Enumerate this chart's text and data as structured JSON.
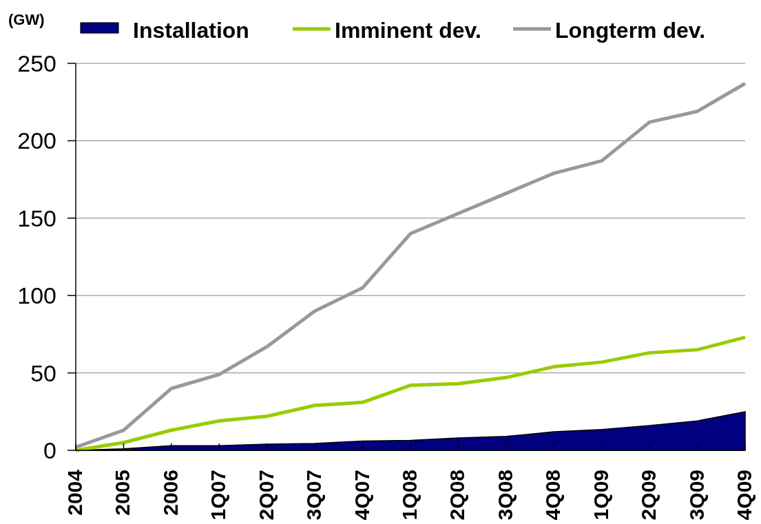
{
  "chart_data": {
    "type": "line",
    "ylabel": "(GW)",
    "categories": [
      "2004",
      "2005",
      "2006",
      "1Q07",
      "2Q07",
      "3Q07",
      "4Q07",
      "1Q08",
      "2Q08",
      "3Q08",
      "4Q08",
      "1Q09",
      "2Q09",
      "3Q09",
      "4Q09"
    ],
    "series": [
      {
        "name": "Installation",
        "type": "area",
        "color": "#000080",
        "values": [
          0,
          1,
          3,
          3,
          4,
          4.5,
          6,
          6.5,
          8,
          9,
          12,
          13.5,
          16,
          19,
          25
        ]
      },
      {
        "name": "Imminent dev.",
        "type": "line",
        "color": "#99cc00",
        "values": [
          0,
          5,
          13,
          19,
          22,
          29,
          31,
          42,
          43,
          47,
          54,
          57,
          63,
          65,
          73
        ]
      },
      {
        "name": "Longterm dev.",
        "type": "line",
        "color": "#999999",
        "values": [
          2,
          13,
          40,
          49,
          67,
          90,
          105,
          140,
          153,
          166,
          179,
          187,
          212,
          219,
          237
        ]
      }
    ],
    "ylim": [
      0,
      250
    ],
    "yticks": [
      0,
      50,
      100,
      150,
      200,
      250
    ],
    "grid": "y",
    "legend": "top"
  }
}
